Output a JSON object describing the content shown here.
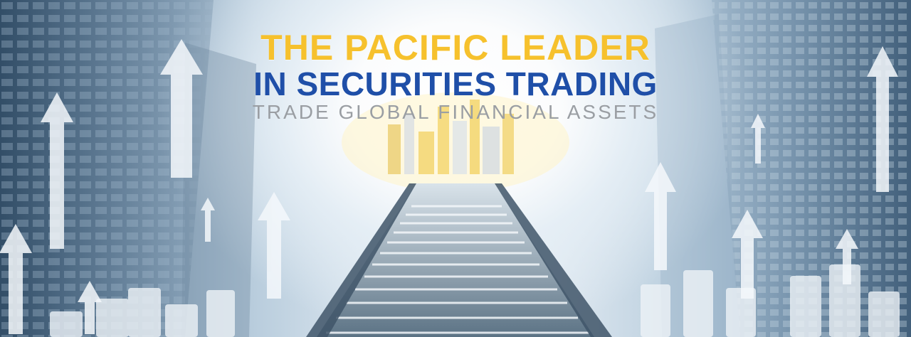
{
  "banner": {
    "headline_line1": "THE PACIFIC LEADER",
    "headline_line2": "IN SECURITIES TRADING",
    "tagline": "TRADE GLOBAL FINANCIAL ASSETS"
  },
  "colors": {
    "headline_yellow": "#f6c12d",
    "headline_blue": "#1f4fa8",
    "tagline_grey": "#9a9ea3"
  },
  "imagery": [
    "skyscrapers-left",
    "skyscrapers-right",
    "staircase",
    "city-skyline",
    "up-arrows",
    "coin-stacks"
  ]
}
